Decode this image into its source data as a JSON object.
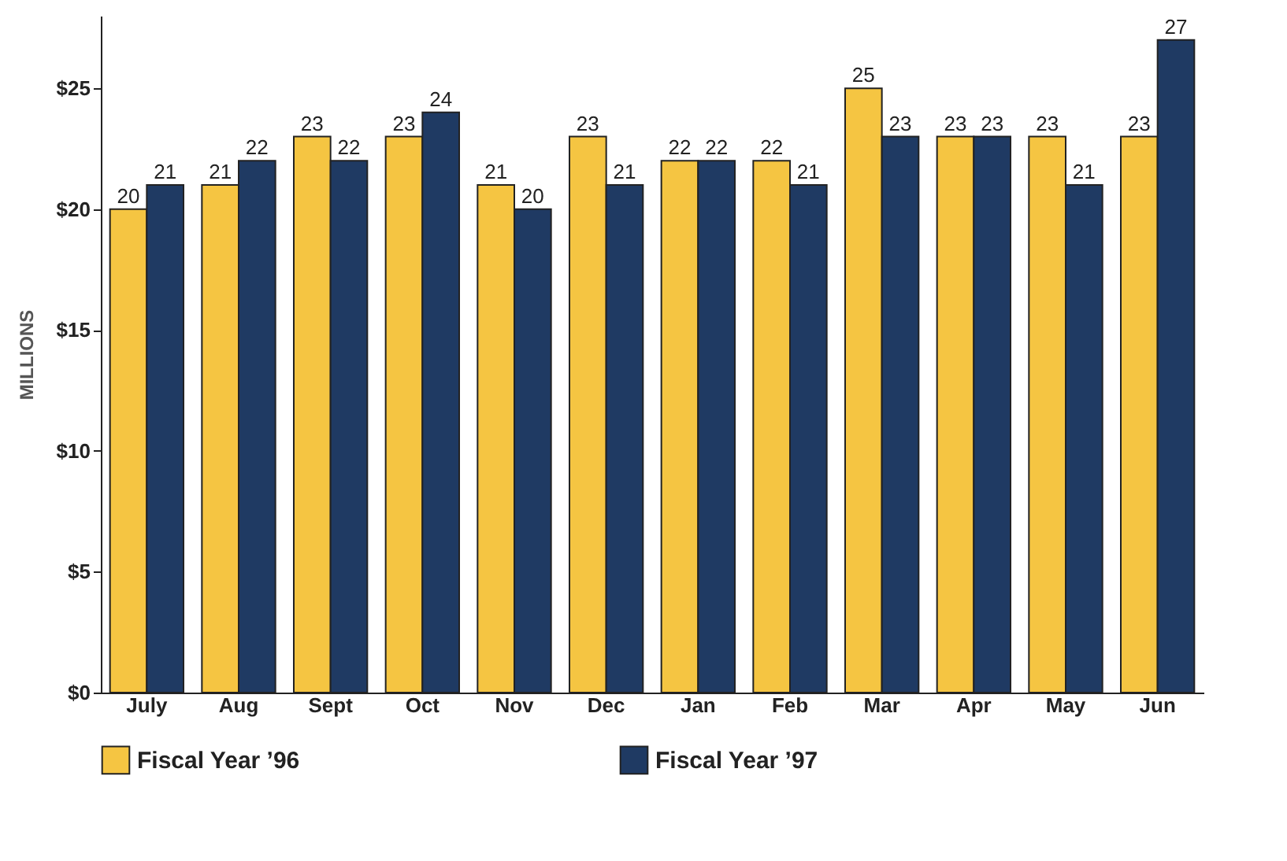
{
  "chart_data": {
    "type": "bar",
    "ylabel": "MILLIONS",
    "categories": [
      "July",
      "Aug",
      "Sept",
      "Oct",
      "Nov",
      "Dec",
      "Jan",
      "Feb",
      "Mar",
      "Apr",
      "May",
      "Jun"
    ],
    "series": [
      {
        "name": "Fiscal Year ’96",
        "color": "#f5c542",
        "values": [
          20,
          21,
          23,
          23,
          21,
          23,
          22,
          22,
          25,
          23,
          23,
          23
        ]
      },
      {
        "name": "Fiscal Year ’97",
        "color": "#1f3a63",
        "values": [
          21,
          22,
          22,
          24,
          20,
          21,
          22,
          21,
          23,
          23,
          21,
          27
        ]
      }
    ],
    "ylim": [
      0,
      28
    ],
    "yticks": [
      {
        "value": 0,
        "label": "$0"
      },
      {
        "value": 5,
        "label": "$5"
      },
      {
        "value": 10,
        "label": "$10"
      },
      {
        "value": 15,
        "label": "$15"
      },
      {
        "value": 20,
        "label": "$20"
      },
      {
        "value": 25,
        "label": "$25"
      }
    ],
    "data_labels": true,
    "grid": false,
    "legend": "bottom"
  }
}
